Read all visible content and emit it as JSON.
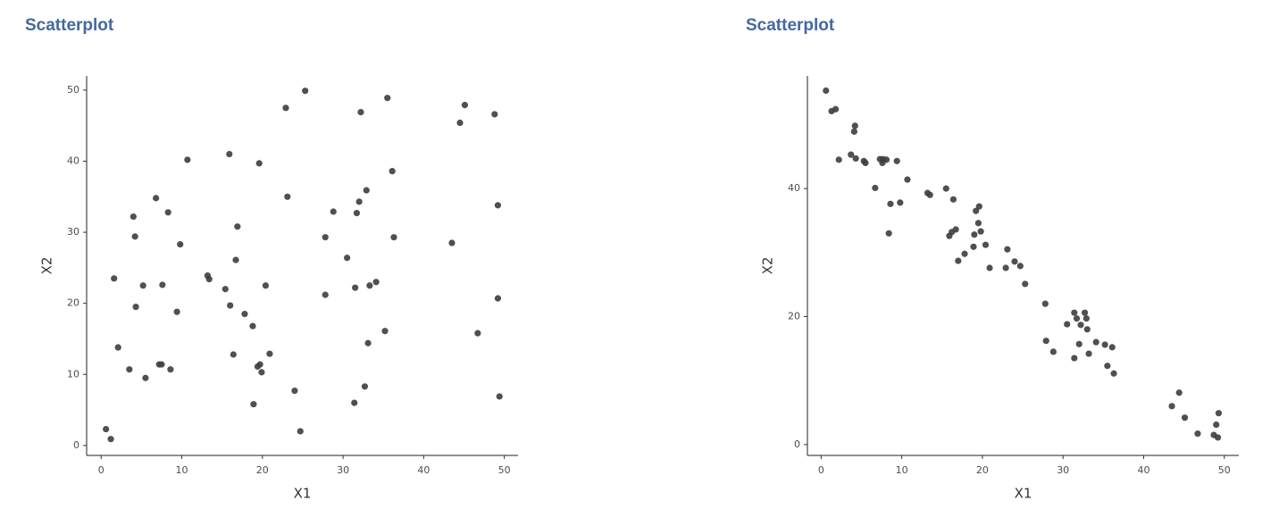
{
  "chart_data": [
    {
      "type": "scatter",
      "title": "Scatterplot",
      "x_label": "X1",
      "y_label": "X2",
      "color": "#3d3d3d",
      "xlim": [
        -1.8,
        51.7
      ],
      "ylim": [
        -1.4,
        52
      ],
      "xticks": [
        0,
        10,
        20,
        30,
        40,
        50
      ],
      "yticks": [
        0,
        10,
        20,
        30,
        40,
        50
      ],
      "x": [
        0.6,
        1.2,
        1.6,
        2.1,
        3.5,
        4.0,
        4.2,
        4.3,
        5.2,
        5.5,
        6.8,
        7.2,
        7.5,
        7.6,
        8.3,
        8.6,
        9.4,
        9.8,
        10.7,
        13.2,
        13.4,
        15.4,
        15.9,
        16.0,
        16.4,
        16.7,
        16.9,
        17.8,
        18.8,
        18.9,
        19.4,
        19.6,
        19.7,
        19.9,
        20.4,
        20.9,
        22.9,
        23.1,
        24.0,
        24.7,
        25.3,
        27.8,
        27.8,
        28.8,
        30.5,
        31.4,
        31.5,
        31.7,
        32.0,
        32.2,
        32.7,
        32.9,
        33.1,
        33.3,
        34.1,
        35.2,
        35.5,
        36.1,
        36.3,
        43.5,
        44.5,
        45.1,
        46.7,
        48.8,
        49.2,
        49.2,
        49.4
      ],
      "y": [
        2.3,
        0.9,
        23.5,
        13.8,
        10.7,
        32.2,
        29.4,
        19.5,
        22.5,
        9.5,
        34.8,
        11.4,
        11.4,
        22.6,
        32.8,
        10.7,
        18.8,
        28.3,
        40.2,
        23.9,
        23.4,
        22.0,
        41.0,
        19.7,
        12.8,
        26.1,
        30.8,
        18.5,
        16.8,
        5.8,
        11.1,
        39.7,
        11.4,
        10.3,
        22.5,
        12.9,
        47.5,
        35.0,
        7.7,
        2.0,
        49.9,
        29.3,
        21.2,
        32.9,
        26.4,
        6.0,
        22.2,
        32.7,
        34.3,
        46.9,
        8.3,
        35.9,
        14.4,
        22.5,
        23.0,
        16.1,
        48.9,
        38.6,
        29.3,
        28.5,
        45.4,
        47.9,
        15.8,
        46.6,
        33.8,
        20.7,
        6.9
      ]
    },
    {
      "type": "scatter",
      "title": "Scatterplot",
      "x_label": "X1",
      "y_label": "X2",
      "color": "#3d3d3d",
      "xlim": [
        -1.7,
        51.8
      ],
      "ylim": [
        -1.7,
        57.6
      ],
      "xticks": [
        0,
        10,
        20,
        30,
        40,
        50
      ],
      "yticks": [
        0,
        20,
        40
      ],
      "x": [
        0.6,
        1.3,
        1.8,
        2.2,
        3.7,
        4.1,
        4.2,
        4.3,
        5.3,
        5.5,
        6.7,
        7.3,
        7.6,
        7.7,
        8.1,
        8.4,
        8.6,
        9.4,
        9.8,
        10.7,
        13.2,
        13.5,
        15.5,
        15.9,
        16.2,
        16.4,
        16.7,
        17.0,
        17.8,
        18.9,
        19.0,
        19.2,
        19.5,
        19.6,
        19.8,
        20.4,
        20.9,
        22.9,
        23.1,
        24.0,
        24.7,
        25.3,
        27.8,
        27.9,
        28.8,
        30.5,
        31.4,
        31.4,
        31.7,
        32.0,
        32.2,
        32.7,
        32.9,
        33.0,
        33.2,
        34.1,
        35.2,
        35.5,
        36.1,
        36.3,
        43.5,
        44.4,
        45.1,
        46.7,
        48.7,
        49.0,
        49.2,
        49.3
      ],
      "y": [
        55.3,
        52.1,
        52.4,
        44.5,
        45.3,
        48.9,
        49.8,
        44.7,
        44.3,
        44.0,
        40.1,
        44.6,
        44.0,
        44.6,
        44.5,
        33.0,
        37.6,
        44.3,
        37.8,
        41.4,
        39.3,
        39.0,
        40.0,
        32.6,
        33.2,
        38.3,
        33.6,
        28.7,
        29.8,
        30.9,
        32.8,
        36.5,
        34.6,
        37.2,
        33.3,
        31.2,
        27.6,
        27.6,
        30.5,
        28.6,
        27.9,
        25.1,
        22.0,
        16.2,
        14.5,
        18.8,
        20.6,
        13.5,
        19.7,
        15.7,
        18.7,
        20.6,
        19.7,
        18.0,
        14.2,
        16.0,
        15.6,
        12.3,
        15.2,
        11.1,
        6.0,
        8.1,
        4.2,
        1.7,
        1.5,
        3.1,
        1.1,
        4.9
      ]
    }
  ]
}
